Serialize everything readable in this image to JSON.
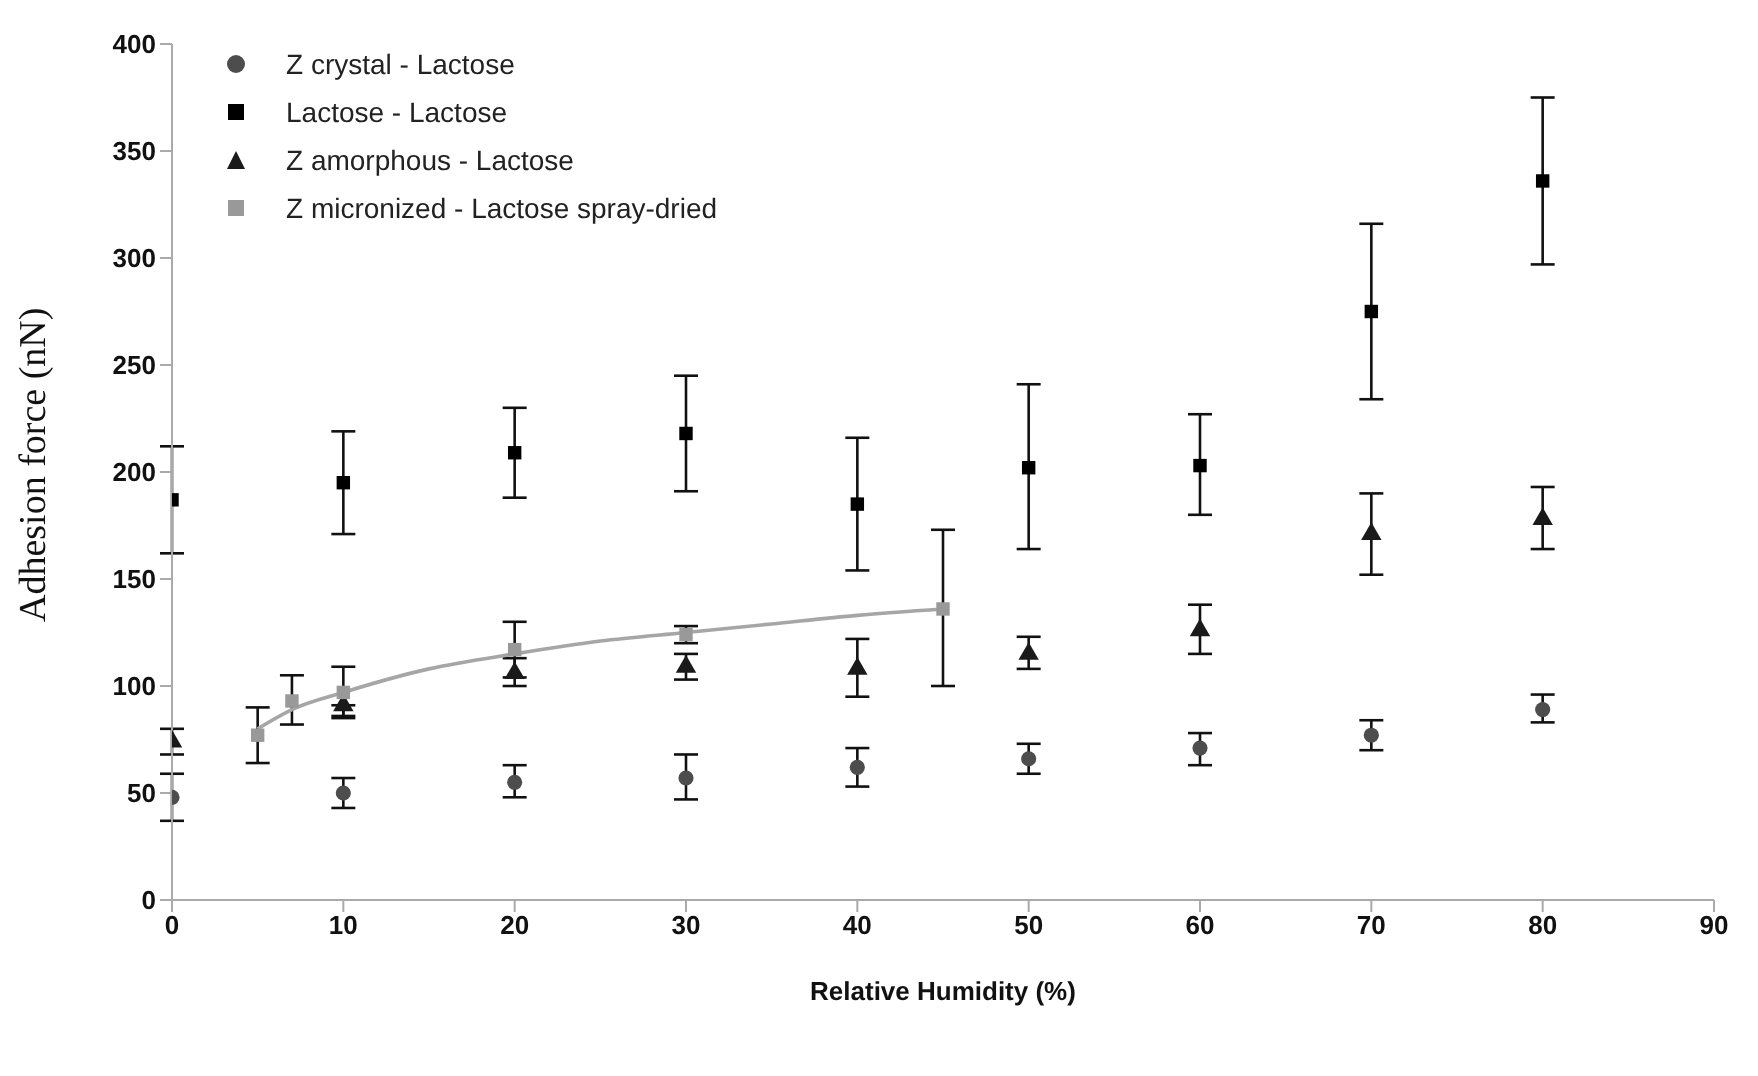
{
  "chart_data": {
    "type": "scatter",
    "xlabel": "Relative Humidity (%)",
    "ylabel": "Adhesion force (nN)",
    "xlim": [
      0,
      90
    ],
    "xticks": [
      0,
      10,
      20,
      30,
      40,
      50,
      60,
      70,
      80,
      90
    ],
    "ylim": [
      0,
      400
    ],
    "yticks": [
      0,
      50,
      100,
      150,
      200,
      250,
      300,
      350,
      400
    ],
    "grid": false,
    "legend": "top left",
    "series": [
      {
        "name": "Z crystal - Lactose",
        "color": "#4d4d4d",
        "marker": "circle",
        "x": [
          0,
          10,
          20,
          30,
          40,
          50,
          60,
          70,
          80
        ],
        "values": [
          48,
          50,
          55,
          57,
          62,
          66,
          71,
          77,
          89
        ],
        "errors": [
          [
            37,
            59
          ],
          [
            43,
            57
          ],
          [
            48,
            63
          ],
          [
            47,
            68
          ],
          [
            53,
            71
          ],
          [
            59,
            73
          ],
          [
            63,
            78
          ],
          [
            70,
            84
          ],
          [
            83,
            96
          ]
        ]
      },
      {
        "name": "Lactose - Lactose",
        "color": "#000000",
        "marker": "square",
        "x": [
          0,
          10,
          20,
          30,
          40,
          50,
          60,
          70,
          80
        ],
        "values": [
          187,
          195,
          209,
          218,
          185,
          202,
          203,
          275,
          336
        ],
        "errors": [
          [
            162,
            212
          ],
          [
            171,
            219
          ],
          [
            188,
            230
          ],
          [
            191,
            245
          ],
          [
            154,
            216
          ],
          [
            164,
            241
          ],
          [
            180,
            227
          ],
          [
            234,
            316
          ],
          [
            297,
            375
          ]
        ]
      },
      {
        "name": "Z amorphous - Lactose",
        "color": "#1a1a1a",
        "marker": "triangle",
        "x": [
          0,
          10,
          20,
          30,
          40,
          50,
          60,
          70,
          80
        ],
        "values": [
          74,
          91,
          106,
          109,
          108,
          115,
          126,
          171,
          178
        ],
        "errors": [
          [
            68,
            80
          ],
          [
            85,
            91
          ],
          [
            100,
            113
          ],
          [
            103,
            115
          ],
          [
            95,
            122
          ],
          [
            108,
            123
          ],
          [
            115,
            138
          ],
          [
            152,
            190
          ],
          [
            164,
            193
          ]
        ]
      },
      {
        "name": "Z micronized - Lactose spray-dried",
        "color": "#999999",
        "marker": "square",
        "x": [
          5,
          7,
          10,
          20,
          30,
          45
        ],
        "values": [
          77,
          93,
          97,
          117,
          124,
          136
        ],
        "errors": [
          [
            64,
            90
          ],
          [
            82,
            105
          ],
          [
            86,
            109
          ],
          [
            104,
            130
          ],
          [
            120,
            128
          ],
          [
            100,
            173
          ]
        ]
      },
      {
        "type": "line",
        "color": "#a6a6a6",
        "marker": "none",
        "x": [
          5,
          7,
          10,
          15,
          20,
          25,
          30,
          35,
          40,
          45
        ],
        "values": [
          80,
          89,
          97,
          108,
          115,
          121,
          125,
          129,
          133,
          136
        ]
      }
    ]
  }
}
